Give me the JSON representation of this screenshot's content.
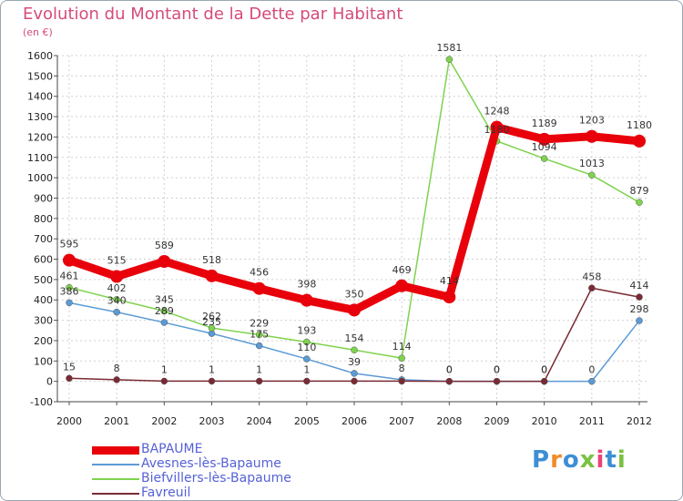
{
  "title": "Evolution du Montant de la Dette par Habitant",
  "unit": "(en €)",
  "logo": {
    "text": "Proxiti",
    "colors": [
      "#3d8fd4",
      "#f28c28",
      "#3d8fd4",
      "#7ac143",
      "#e8447a",
      "#3d8fd4",
      "#7ac143"
    ]
  },
  "chart_data": {
    "type": "line",
    "x": [
      "2000",
      "2001",
      "2002",
      "2003",
      "2004",
      "2005",
      "2006",
      "2007",
      "2008",
      "2009",
      "2010",
      "2011",
      "2012"
    ],
    "ylim": [
      -100,
      1600
    ],
    "yticks": [
      -100,
      0,
      100,
      200,
      300,
      400,
      500,
      600,
      700,
      800,
      900,
      1000,
      1100,
      1200,
      1300,
      1400,
      1500,
      1600
    ],
    "grid": true,
    "legend_position": "bottom-left",
    "series": [
      {
        "name": "BAPAUME",
        "color": "#e8000b",
        "values": [
          595,
          515,
          589,
          518,
          456,
          398,
          350,
          469,
          414,
          1248,
          1189,
          1203,
          1180
        ],
        "labels": [
          "595",
          "515",
          "589",
          "518",
          "456",
          "398",
          "350",
          "469",
          "414",
          "1248",
          "1189",
          "1203",
          "1180"
        ]
      },
      {
        "name": "Avesnes-lès-Bapaume",
        "color": "#5b9bd5",
        "values": [
          386,
          340,
          289,
          235,
          175,
          110,
          39,
          8,
          0,
          0,
          0,
          0,
          298
        ],
        "labels": [
          "386",
          "340",
          "289",
          "235",
          "175",
          "110",
          "39",
          "8",
          "0",
          "0",
          "0",
          "0",
          "298"
        ]
      },
      {
        "name": "Biefvillers-lès-Bapaume",
        "color": "#7fd34e",
        "values": [
          461,
          402,
          345,
          262,
          229,
          193,
          154,
          114,
          1581,
          1180,
          1094,
          1013,
          879
        ],
        "labels": [
          "461",
          "402",
          "345",
          "262",
          "229",
          "193",
          "154",
          "114",
          "1581",
          "1180",
          "1094",
          "1013",
          "879"
        ]
      },
      {
        "name": "Favreuil",
        "color": "#7a2a34",
        "values": [
          15,
          8,
          1,
          1,
          1,
          1,
          1,
          1,
          0,
          0,
          0,
          458,
          414
        ],
        "labels": [
          "15",
          "8",
          "1",
          "1",
          "1",
          "1",
          "",
          "",
          "0",
          "0",
          "0",
          "458",
          "414"
        ]
      }
    ]
  }
}
